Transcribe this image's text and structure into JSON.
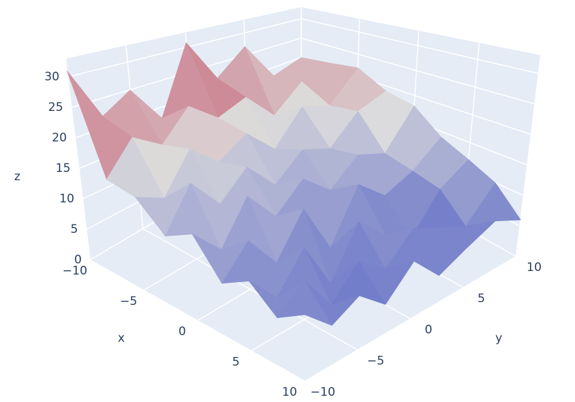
{
  "chart_data": {
    "type": "surface",
    "x_title": "x",
    "y_title": "y",
    "z_title": "z",
    "x": [
      -10,
      -7.5,
      -5,
      -2.5,
      0,
      2.5,
      5,
      7.5,
      10
    ],
    "y": [
      -10,
      -7.5,
      -5,
      -2.5,
      0,
      2.5,
      5,
      7.5,
      10
    ],
    "z": [
      [
        31,
        22,
        25,
        18,
        31,
        22,
        27,
        18,
        20
      ],
      [
        15,
        20,
        17,
        22,
        18,
        20,
        14,
        19,
        21
      ],
      [
        14,
        12,
        18,
        14,
        17,
        12,
        18,
        16,
        22
      ],
      [
        10,
        16,
        11,
        15,
        10,
        14,
        12,
        17,
        19
      ],
      [
        12,
        8,
        14,
        9,
        13,
        9,
        13,
        11,
        18
      ],
      [
        7,
        11,
        6,
        12,
        4,
        12,
        8,
        10,
        14
      ],
      [
        9,
        5,
        10,
        3,
        10,
        6,
        3,
        9,
        12
      ],
      [
        6,
        9,
        4,
        8,
        5,
        9,
        7,
        5,
        10
      ],
      [
        8,
        5,
        7,
        4,
        8,
        4,
        6,
        8,
        6
      ]
    ],
    "colorscale": [
      "#3b4cc0",
      "#dddcdc",
      "#b40426"
    ],
    "xlim": [
      -10,
      10
    ],
    "ylim": [
      -10,
      10
    ],
    "zlim": [
      0,
      33
    ],
    "xticks": [
      {
        "value": -10,
        "label": "−10"
      },
      {
        "value": -5,
        "label": "−5"
      },
      0,
      5,
      10
    ],
    "yticks": [
      {
        "value": -10,
        "label": "−10"
      },
      {
        "value": -5,
        "label": "−5"
      },
      0,
      5,
      10
    ],
    "zticks": [
      0,
      5,
      10,
      15,
      20,
      25,
      30
    ],
    "wall_color": "#e5ecf6",
    "grid_color": "#ffffff"
  }
}
